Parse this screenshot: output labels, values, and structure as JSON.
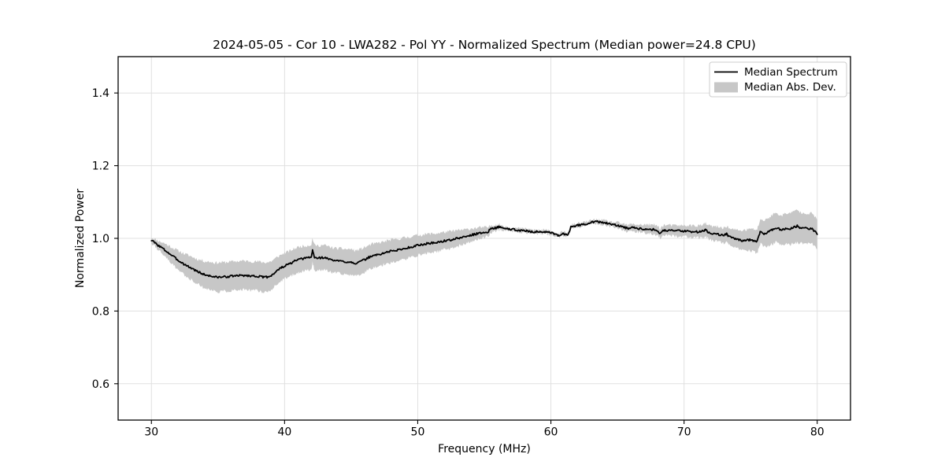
{
  "chart_data": {
    "type": "line",
    "title": "2024-05-05 - Cor 10 - LWA282 - Pol YY - Normalized Spectrum (Median power=24.8 CPU)",
    "xlabel": "Frequency (MHz)",
    "ylabel": "Normalized Power",
    "xlim": [
      27.5,
      82.5
    ],
    "ylim": [
      0.5,
      1.5
    ],
    "x_ticks": [
      30,
      40,
      50,
      60,
      70,
      80
    ],
    "y_ticks": [
      0.6,
      0.8,
      1.0,
      1.2,
      1.4
    ],
    "grid": true,
    "legend": {
      "position": "upper right",
      "entries": [
        {
          "label": "Median Spectrum",
          "type": "line",
          "color": "#000000"
        },
        {
          "label": "Median Abs. Dev.",
          "type": "patch",
          "color": "#c7c7c7"
        }
      ]
    },
    "colors": {
      "line": "#000000",
      "band": "#c7c7c7",
      "grid": "#e0e0e0",
      "frame": "#000000",
      "background": "#ffffff"
    },
    "style": {
      "line_noise": 0.0028,
      "band_noise": 0.0045,
      "noise_seed_line": 3,
      "noise_seed_band": 11,
      "subdivisions": 4
    },
    "series_note": "points are [frequency_MHz, median_power, median_abs_dev]",
    "points": [
      [
        30.0,
        0.995,
        0.008
      ],
      [
        30.25,
        0.988,
        0.01
      ],
      [
        30.5,
        0.981,
        0.013
      ],
      [
        30.75,
        0.975,
        0.015
      ],
      [
        31.0,
        0.968,
        0.018
      ],
      [
        31.25,
        0.961,
        0.02
      ],
      [
        31.5,
        0.954,
        0.022
      ],
      [
        31.75,
        0.947,
        0.024
      ],
      [
        32.0,
        0.94,
        0.026
      ],
      [
        32.25,
        0.934,
        0.028
      ],
      [
        32.5,
        0.928,
        0.029
      ],
      [
        32.75,
        0.923,
        0.031
      ],
      [
        33.0,
        0.918,
        0.032
      ],
      [
        33.25,
        0.913,
        0.033
      ],
      [
        33.5,
        0.908,
        0.034
      ],
      [
        33.75,
        0.904,
        0.036
      ],
      [
        34.0,
        0.9,
        0.037
      ],
      [
        34.25,
        0.898,
        0.038
      ],
      [
        34.5,
        0.896,
        0.039
      ],
      [
        34.75,
        0.894,
        0.039
      ],
      [
        35.0,
        0.893,
        0.04
      ],
      [
        35.25,
        0.894,
        0.04
      ],
      [
        35.5,
        0.894,
        0.04
      ],
      [
        35.75,
        0.895,
        0.04
      ],
      [
        36.0,
        0.896,
        0.04
      ],
      [
        36.25,
        0.897,
        0.04
      ],
      [
        36.5,
        0.897,
        0.04
      ],
      [
        36.75,
        0.898,
        0.04
      ],
      [
        37.0,
        0.898,
        0.04
      ],
      [
        37.25,
        0.897,
        0.04
      ],
      [
        37.5,
        0.897,
        0.04
      ],
      [
        37.75,
        0.896,
        0.04
      ],
      [
        38.0,
        0.896,
        0.04
      ],
      [
        38.25,
        0.894,
        0.041
      ],
      [
        38.5,
        0.893,
        0.041
      ],
      [
        38.75,
        0.894,
        0.04
      ],
      [
        39.0,
        0.898,
        0.039
      ],
      [
        39.25,
        0.905,
        0.038
      ],
      [
        39.5,
        0.913,
        0.037
      ],
      [
        39.75,
        0.919,
        0.036
      ],
      [
        40.0,
        0.924,
        0.036
      ],
      [
        40.25,
        0.928,
        0.035
      ],
      [
        40.5,
        0.932,
        0.035
      ],
      [
        40.75,
        0.937,
        0.035
      ],
      [
        41.0,
        0.941,
        0.035
      ],
      [
        41.25,
        0.943,
        0.035
      ],
      [
        41.5,
        0.945,
        0.034
      ],
      [
        41.75,
        0.947,
        0.034
      ],
      [
        42.0,
        0.948,
        0.034
      ],
      [
        42.1,
        0.967,
        0.034
      ],
      [
        42.25,
        0.947,
        0.034
      ],
      [
        42.5,
        0.946,
        0.034
      ],
      [
        42.75,
        0.947,
        0.034
      ],
      [
        43.0,
        0.947,
        0.034
      ],
      [
        43.25,
        0.944,
        0.034
      ],
      [
        43.5,
        0.941,
        0.034
      ],
      [
        43.75,
        0.939,
        0.034
      ],
      [
        44.0,
        0.938,
        0.034
      ],
      [
        44.25,
        0.937,
        0.035
      ],
      [
        44.5,
        0.936,
        0.035
      ],
      [
        44.75,
        0.935,
        0.035
      ],
      [
        45.0,
        0.936,
        0.035
      ],
      [
        45.25,
        0.931,
        0.035
      ],
      [
        45.5,
        0.933,
        0.035
      ],
      [
        45.75,
        0.937,
        0.034
      ],
      [
        46.0,
        0.941,
        0.034
      ],
      [
        46.25,
        0.946,
        0.033
      ],
      [
        46.5,
        0.951,
        0.033
      ],
      [
        46.75,
        0.953,
        0.032
      ],
      [
        47.0,
        0.955,
        0.032
      ],
      [
        47.25,
        0.957,
        0.032
      ],
      [
        47.5,
        0.96,
        0.031
      ],
      [
        47.75,
        0.963,
        0.031
      ],
      [
        48.0,
        0.965,
        0.031
      ],
      [
        48.25,
        0.966,
        0.031
      ],
      [
        48.5,
        0.968,
        0.03
      ],
      [
        48.75,
        0.97,
        0.03
      ],
      [
        49.0,
        0.972,
        0.03
      ],
      [
        49.25,
        0.974,
        0.029
      ],
      [
        49.5,
        0.976,
        0.029
      ],
      [
        49.75,
        0.979,
        0.028
      ],
      [
        50.0,
        0.981,
        0.028
      ],
      [
        50.25,
        0.982,
        0.027
      ],
      [
        50.5,
        0.984,
        0.027
      ],
      [
        50.75,
        0.986,
        0.026
      ],
      [
        51.0,
        0.987,
        0.026
      ],
      [
        51.25,
        0.988,
        0.025
      ],
      [
        51.5,
        0.989,
        0.025
      ],
      [
        51.75,
        0.991,
        0.025
      ],
      [
        52.0,
        0.993,
        0.024
      ],
      [
        52.25,
        0.994,
        0.024
      ],
      [
        52.5,
        0.996,
        0.023
      ],
      [
        52.75,
        0.998,
        0.023
      ],
      [
        53.0,
        1.0,
        0.022
      ],
      [
        53.25,
        1.002,
        0.021
      ],
      [
        53.5,
        1.004,
        0.02
      ],
      [
        53.75,
        1.006,
        0.019
      ],
      [
        54.0,
        1.009,
        0.018
      ],
      [
        54.25,
        1.011,
        0.017
      ],
      [
        54.5,
        1.013,
        0.016
      ],
      [
        54.75,
        1.015,
        0.015
      ],
      [
        55.0,
        1.016,
        0.014
      ],
      [
        55.25,
        1.018,
        0.012
      ],
      [
        55.5,
        1.026,
        0.01
      ],
      [
        55.75,
        1.028,
        0.009
      ],
      [
        56.0,
        1.03,
        0.008
      ],
      [
        56.1,
        1.032,
        0.007
      ],
      [
        56.25,
        1.029,
        0.007
      ],
      [
        56.5,
        1.028,
        0.006
      ],
      [
        56.75,
        1.026,
        0.006
      ],
      [
        57.0,
        1.025,
        0.005
      ],
      [
        57.25,
        1.024,
        0.005
      ],
      [
        57.5,
        1.023,
        0.005
      ],
      [
        57.75,
        1.022,
        0.005
      ],
      [
        58.0,
        1.021,
        0.005
      ],
      [
        58.25,
        1.02,
        0.005
      ],
      [
        58.5,
        1.019,
        0.005
      ],
      [
        58.75,
        1.018,
        0.005
      ],
      [
        59.0,
        1.018,
        0.005
      ],
      [
        59.25,
        1.018,
        0.005
      ],
      [
        59.5,
        1.018,
        0.005
      ],
      [
        59.75,
        1.016,
        0.005
      ],
      [
        60.0,
        1.015,
        0.005
      ],
      [
        60.25,
        1.012,
        0.005
      ],
      [
        60.5,
        1.008,
        0.005
      ],
      [
        60.65,
        1.007,
        0.005
      ],
      [
        60.9,
        1.013,
        0.005
      ],
      [
        61.1,
        1.011,
        0.005
      ],
      [
        61.3,
        1.01,
        0.005
      ],
      [
        61.5,
        1.033,
        0.005
      ],
      [
        61.75,
        1.034,
        0.005
      ],
      [
        62.0,
        1.036,
        0.005
      ],
      [
        62.25,
        1.037,
        0.005
      ],
      [
        62.5,
        1.039,
        0.005
      ],
      [
        62.75,
        1.041,
        0.005
      ],
      [
        63.0,
        1.044,
        0.005
      ],
      [
        63.25,
        1.046,
        0.005
      ],
      [
        63.5,
        1.046,
        0.005
      ],
      [
        63.75,
        1.044,
        0.006
      ],
      [
        64.0,
        1.043,
        0.006
      ],
      [
        64.25,
        1.041,
        0.006
      ],
      [
        64.5,
        1.039,
        0.006
      ],
      [
        64.75,
        1.037,
        0.007
      ],
      [
        65.0,
        1.036,
        0.007
      ],
      [
        65.25,
        1.033,
        0.008
      ],
      [
        65.5,
        1.031,
        0.008
      ],
      [
        65.75,
        1.027,
        0.009
      ],
      [
        66.0,
        1.03,
        0.009
      ],
      [
        66.25,
        1.029,
        0.01
      ],
      [
        66.5,
        1.028,
        0.01
      ],
      [
        66.75,
        1.027,
        0.011
      ],
      [
        67.0,
        1.026,
        0.011
      ],
      [
        67.25,
        1.026,
        0.012
      ],
      [
        67.5,
        1.025,
        0.012
      ],
      [
        67.75,
        1.024,
        0.013
      ],
      [
        68.0,
        1.022,
        0.013
      ],
      [
        68.2,
        1.014,
        0.013
      ],
      [
        68.5,
        1.023,
        0.014
      ],
      [
        68.75,
        1.022,
        0.014
      ],
      [
        69.0,
        1.022,
        0.014
      ],
      [
        69.25,
        1.021,
        0.014
      ],
      [
        69.5,
        1.021,
        0.015
      ],
      [
        69.75,
        1.02,
        0.015
      ],
      [
        70.0,
        1.02,
        0.015
      ],
      [
        70.25,
        1.02,
        0.016
      ],
      [
        70.5,
        1.019,
        0.016
      ],
      [
        70.75,
        1.018,
        0.017
      ],
      [
        71.0,
        1.018,
        0.017
      ],
      [
        71.25,
        1.019,
        0.017
      ],
      [
        71.5,
        1.02,
        0.018
      ],
      [
        71.6,
        1.025,
        0.018
      ],
      [
        71.75,
        1.018,
        0.018
      ],
      [
        72.0,
        1.015,
        0.019
      ],
      [
        72.25,
        1.013,
        0.019
      ],
      [
        72.5,
        1.012,
        0.02
      ],
      [
        72.75,
        1.01,
        0.02
      ],
      [
        73.0,
        1.008,
        0.021
      ],
      [
        73.2,
        1.012,
        0.022
      ],
      [
        73.4,
        1.004,
        0.023
      ],
      [
        73.75,
        1.0,
        0.024
      ],
      [
        74.0,
        0.997,
        0.026
      ],
      [
        74.25,
        0.995,
        0.027
      ],
      [
        74.5,
        0.994,
        0.028
      ],
      [
        74.75,
        0.995,
        0.029
      ],
      [
        75.0,
        0.996,
        0.03
      ],
      [
        75.25,
        0.994,
        0.031
      ],
      [
        75.5,
        0.992,
        0.032
      ],
      [
        75.6,
        1.005,
        0.033
      ],
      [
        75.75,
        1.02,
        0.034
      ],
      [
        76.0,
        1.012,
        0.036
      ],
      [
        76.25,
        1.016,
        0.038
      ],
      [
        76.5,
        1.022,
        0.039
      ],
      [
        76.75,
        1.027,
        0.04
      ],
      [
        77.0,
        1.03,
        0.04
      ],
      [
        77.25,
        1.022,
        0.04
      ],
      [
        77.5,
        1.025,
        0.041
      ],
      [
        77.75,
        1.028,
        0.042
      ],
      [
        78.0,
        1.026,
        0.043
      ],
      [
        78.25,
        1.03,
        0.044
      ],
      [
        78.5,
        1.034,
        0.045
      ],
      [
        78.75,
        1.028,
        0.043
      ],
      [
        79.0,
        1.03,
        0.042
      ],
      [
        79.25,
        1.026,
        0.042
      ],
      [
        79.5,
        1.028,
        0.042
      ],
      [
        79.75,
        1.022,
        0.041
      ],
      [
        80.0,
        1.011,
        0.04
      ]
    ]
  }
}
